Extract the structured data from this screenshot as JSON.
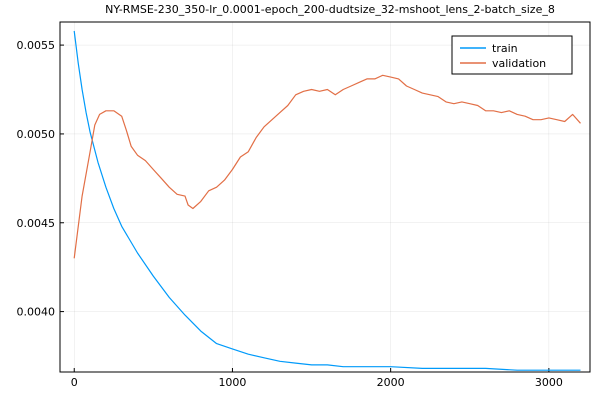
{
  "chart_data": {
    "type": "line",
    "title": "NY-RMSE-230_350-lr_0.0001-epoch_200-dudtsize_32-mshoot_lens_2-batch_size_8",
    "xlabel": "",
    "ylabel": "",
    "xlim": [
      -90,
      3260
    ],
    "ylim": [
      0.00366,
      0.00563
    ],
    "xticks": [
      0,
      1000,
      2000,
      3000
    ],
    "xtick_labels": [
      "0",
      "1000",
      "2000",
      "3000"
    ],
    "yticks": [
      0.004,
      0.0045,
      0.005,
      0.0055
    ],
    "ytick_labels": [
      "0.0040",
      "0.0045",
      "0.0050",
      "0.0055"
    ],
    "grid": true,
    "legend_position": "top-right",
    "series": [
      {
        "name": "train",
        "color": "#009AFA",
        "x": [
          0,
          25,
          50,
          75,
          100,
          150,
          200,
          250,
          300,
          400,
          500,
          600,
          700,
          800,
          900,
          1000,
          1100,
          1200,
          1300,
          1400,
          1500,
          1600,
          1700,
          1800,
          1900,
          2000,
          2200,
          2400,
          2600,
          2800,
          3000,
          3200
        ],
        "y": [
          0.00558,
          0.0054,
          0.00525,
          0.00512,
          0.00501,
          0.00484,
          0.0047,
          0.00458,
          0.00448,
          0.00433,
          0.0042,
          0.00408,
          0.00398,
          0.00389,
          0.00382,
          0.00379,
          0.00376,
          0.00374,
          0.00372,
          0.00371,
          0.0037,
          0.0037,
          0.00369,
          0.00369,
          0.00369,
          0.00369,
          0.00368,
          0.00368,
          0.00368,
          0.00367,
          0.00367,
          0.00367
        ]
      },
      {
        "name": "validation",
        "color": "#E26F46",
        "x": [
          0,
          50,
          100,
          130,
          160,
          200,
          250,
          300,
          330,
          360,
          400,
          450,
          500,
          550,
          600,
          650,
          700,
          720,
          750,
          800,
          850,
          900,
          950,
          1000,
          1050,
          1100,
          1150,
          1200,
          1250,
          1300,
          1350,
          1400,
          1450,
          1500,
          1550,
          1600,
          1650,
          1700,
          1750,
          1800,
          1850,
          1900,
          1950,
          2000,
          2050,
          2100,
          2150,
          2200,
          2250,
          2300,
          2350,
          2400,
          2450,
          2500,
          2550,
          2600,
          2650,
          2700,
          2750,
          2800,
          2850,
          2900,
          2950,
          3000,
          3050,
          3100,
          3150,
          3200
        ],
        "y": [
          0.0043,
          0.00465,
          0.0049,
          0.00505,
          0.00511,
          0.00513,
          0.00513,
          0.0051,
          0.00502,
          0.00493,
          0.00488,
          0.00485,
          0.0048,
          0.00475,
          0.0047,
          0.00466,
          0.00465,
          0.0046,
          0.00458,
          0.00462,
          0.00468,
          0.0047,
          0.00474,
          0.0048,
          0.00487,
          0.0049,
          0.00498,
          0.00504,
          0.00508,
          0.00512,
          0.00516,
          0.00522,
          0.00524,
          0.00525,
          0.00524,
          0.00525,
          0.00522,
          0.00525,
          0.00527,
          0.00529,
          0.00531,
          0.00531,
          0.00533,
          0.00532,
          0.00531,
          0.00527,
          0.00525,
          0.00523,
          0.00522,
          0.00521,
          0.00518,
          0.00517,
          0.00518,
          0.00517,
          0.00516,
          0.00513,
          0.00513,
          0.00512,
          0.00513,
          0.00511,
          0.0051,
          0.00508,
          0.00508,
          0.00509,
          0.00508,
          0.00507,
          0.00511,
          0.00506
        ]
      }
    ]
  }
}
